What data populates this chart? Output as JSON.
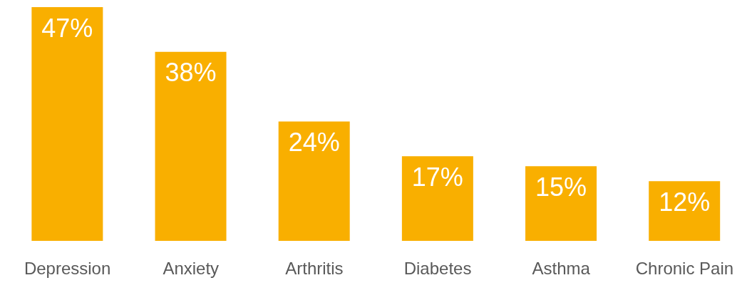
{
  "chart_data": {
    "type": "bar",
    "categories": [
      "Depression",
      "Anxiety",
      "Arthritis",
      "Diabetes",
      "Asthma",
      "Chronic Pain"
    ],
    "values": [
      47,
      38,
      24,
      17,
      15,
      12
    ],
    "value_labels": [
      "47%",
      "38%",
      "24%",
      "17%",
      "15%",
      "12%"
    ],
    "color": "#f9af00"
  }
}
